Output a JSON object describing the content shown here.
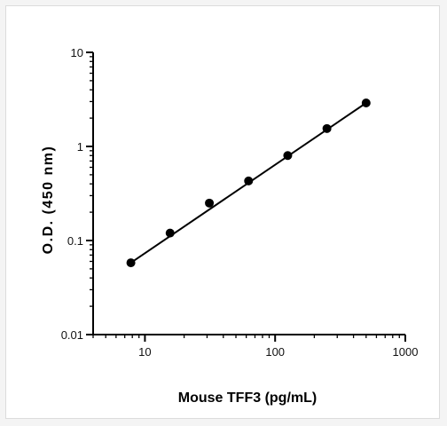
{
  "chart_data": {
    "type": "scatter",
    "title": "",
    "xlabel": "Mouse TFF3 (pg/mL)",
    "ylabel": "O.D. (450 nm)",
    "x_scale": "log",
    "y_scale": "log",
    "xlim": [
      4,
      1000
    ],
    "ylim": [
      0.01,
      10
    ],
    "x_ticks": [
      {
        "value": 10,
        "label": "10"
      },
      {
        "value": 100,
        "label": "100"
      },
      {
        "value": 1000,
        "label": "1000"
      }
    ],
    "y_ticks": [
      {
        "value": 0.01,
        "label": "0.01"
      },
      {
        "value": 0.1,
        "label": "0.1"
      },
      {
        "value": 1,
        "label": "1"
      },
      {
        "value": 10,
        "label": "10"
      }
    ],
    "grid": false,
    "legend": "none",
    "series": [
      {
        "x": [
          7.8,
          15.6,
          31.25,
          62.5,
          125,
          250,
          500
        ],
        "y": [
          0.058,
          0.12,
          0.25,
          0.43,
          0.8,
          1.55,
          2.9
        ]
      }
    ],
    "fit_line": {
      "x": [
        7.8,
        500
      ],
      "y": [
        0.058,
        2.9
      ]
    },
    "colors": {
      "marker": "#000000",
      "line": "#000000",
      "axis": "#000000"
    }
  }
}
